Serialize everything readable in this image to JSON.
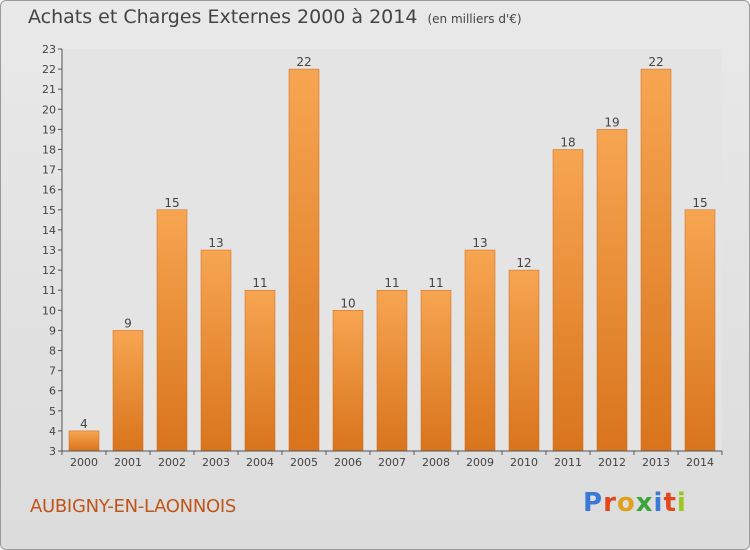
{
  "title": "Achats et Charges Externes 2000 à 2014",
  "unit": "(en milliers d'€)",
  "commune": "AUBIGNY-EN-LAONNOIS",
  "brand": {
    "letters": [
      "P",
      "r",
      "o",
      "x",
      "i",
      "t",
      "i"
    ],
    "colors": [
      "#3a7ad6",
      "#e0481c",
      "#e0a21c",
      "#3aa63a",
      "#3a7ad6",
      "#e0481c",
      "#9ac81c"
    ]
  },
  "chart_data": {
    "type": "bar",
    "categories": [
      "2000",
      "2001",
      "2002",
      "2003",
      "2004",
      "2005",
      "2006",
      "2007",
      "2008",
      "2009",
      "2010",
      "2011",
      "2012",
      "2013",
      "2014"
    ],
    "values": [
      4,
      9,
      15,
      13,
      11,
      22,
      10,
      11,
      11,
      13,
      12,
      18,
      19,
      22,
      15
    ],
    "ylim": [
      3,
      23
    ],
    "yticks": [
      3,
      4,
      5,
      6,
      7,
      8,
      9,
      10,
      11,
      12,
      13,
      14,
      15,
      16,
      17,
      18,
      19,
      20,
      21,
      22,
      23
    ],
    "grid": false,
    "bar_color": "#f39c3c",
    "bar_color_dark": "#d9741c"
  }
}
